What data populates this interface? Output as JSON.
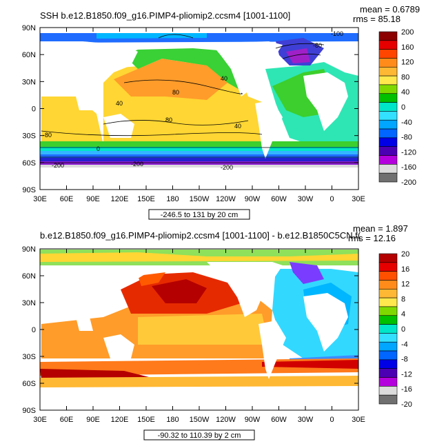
{
  "chart_data": [
    {
      "type": "heatmap",
      "title": "SSH b.e12.B1850.f09_g16.PIMP4-pliomip2.ccsm4 [1001-1100]",
      "stats": {
        "mean": "mean = 0.6789",
        "rms": "rms = 85.18"
      },
      "x_ticks": [
        "30E",
        "60E",
        "90E",
        "120E",
        "150E",
        "180",
        "150W",
        "120W",
        "90W",
        "60W",
        "30W",
        "0",
        "30E"
      ],
      "y_ticks": [
        "90N",
        "60N",
        "30N",
        "0",
        "30S",
        "60S",
        "90S"
      ],
      "xlim": [
        30,
        390
      ],
      "ylim": [
        -90,
        90
      ],
      "contour_info": "-246.5 to 131 by 20 cm",
      "colorbar": {
        "labels": [
          "200",
          "160",
          "120",
          "80",
          "40",
          "0",
          "-40",
          "-80",
          "-120",
          "-160",
          "-200"
        ],
        "colors": [
          "#8c0000",
          "#e60000",
          "#ff4500",
          "#ff8c1a",
          "#ffb833",
          "#ffe84d",
          "#7fd900",
          "#00c000",
          "#00e6c8",
          "#33e0ff",
          "#00a6ff",
          "#0066ff",
          "#0000e6",
          "#4b00b4",
          "#b400dc",
          "#dcdcdc",
          "#707070"
        ]
      },
      "contour_labels": [
        "80",
        "40",
        "40",
        "0",
        "-80",
        "-200",
        "-200",
        "-200",
        "80",
        "40",
        "-80",
        "-100"
      ]
    },
    {
      "type": "heatmap",
      "title": "b.e12.B1850.f09_g16.PIMP4-pliomip2.ccsm4 [1001-1100] - b.e12.B1850C5CN.f(",
      "stats": {
        "mean": "mean = 1.897",
        "rms": "rms = 12.16"
      },
      "x_ticks": [
        "30E",
        "60E",
        "90E",
        "120E",
        "150E",
        "180",
        "150W",
        "120W",
        "90W",
        "60W",
        "30W",
        "0",
        "30E"
      ],
      "y_ticks": [
        "90N",
        "60N",
        "30N",
        "0",
        "30S",
        "60S",
        "90S"
      ],
      "xlim": [
        30,
        390
      ],
      "ylim": [
        -90,
        90
      ],
      "contour_info": "-90.32 to 110.39 by 2 cm",
      "colorbar": {
        "labels": [
          "20",
          "16",
          "12",
          "8",
          "4",
          "0",
          "-4",
          "-8",
          "-12",
          "-16",
          "-20"
        ],
        "colors": [
          "#b40000",
          "#e60000",
          "#ff5000",
          "#ff8c1a",
          "#ffb833",
          "#ffe84d",
          "#7fd900",
          "#00c000",
          "#00e6c8",
          "#33e0ff",
          "#00a6ff",
          "#0066ff",
          "#0000e6",
          "#4b00b4",
          "#b400dc",
          "#dcdcdc",
          "#707070"
        ]
      }
    }
  ]
}
